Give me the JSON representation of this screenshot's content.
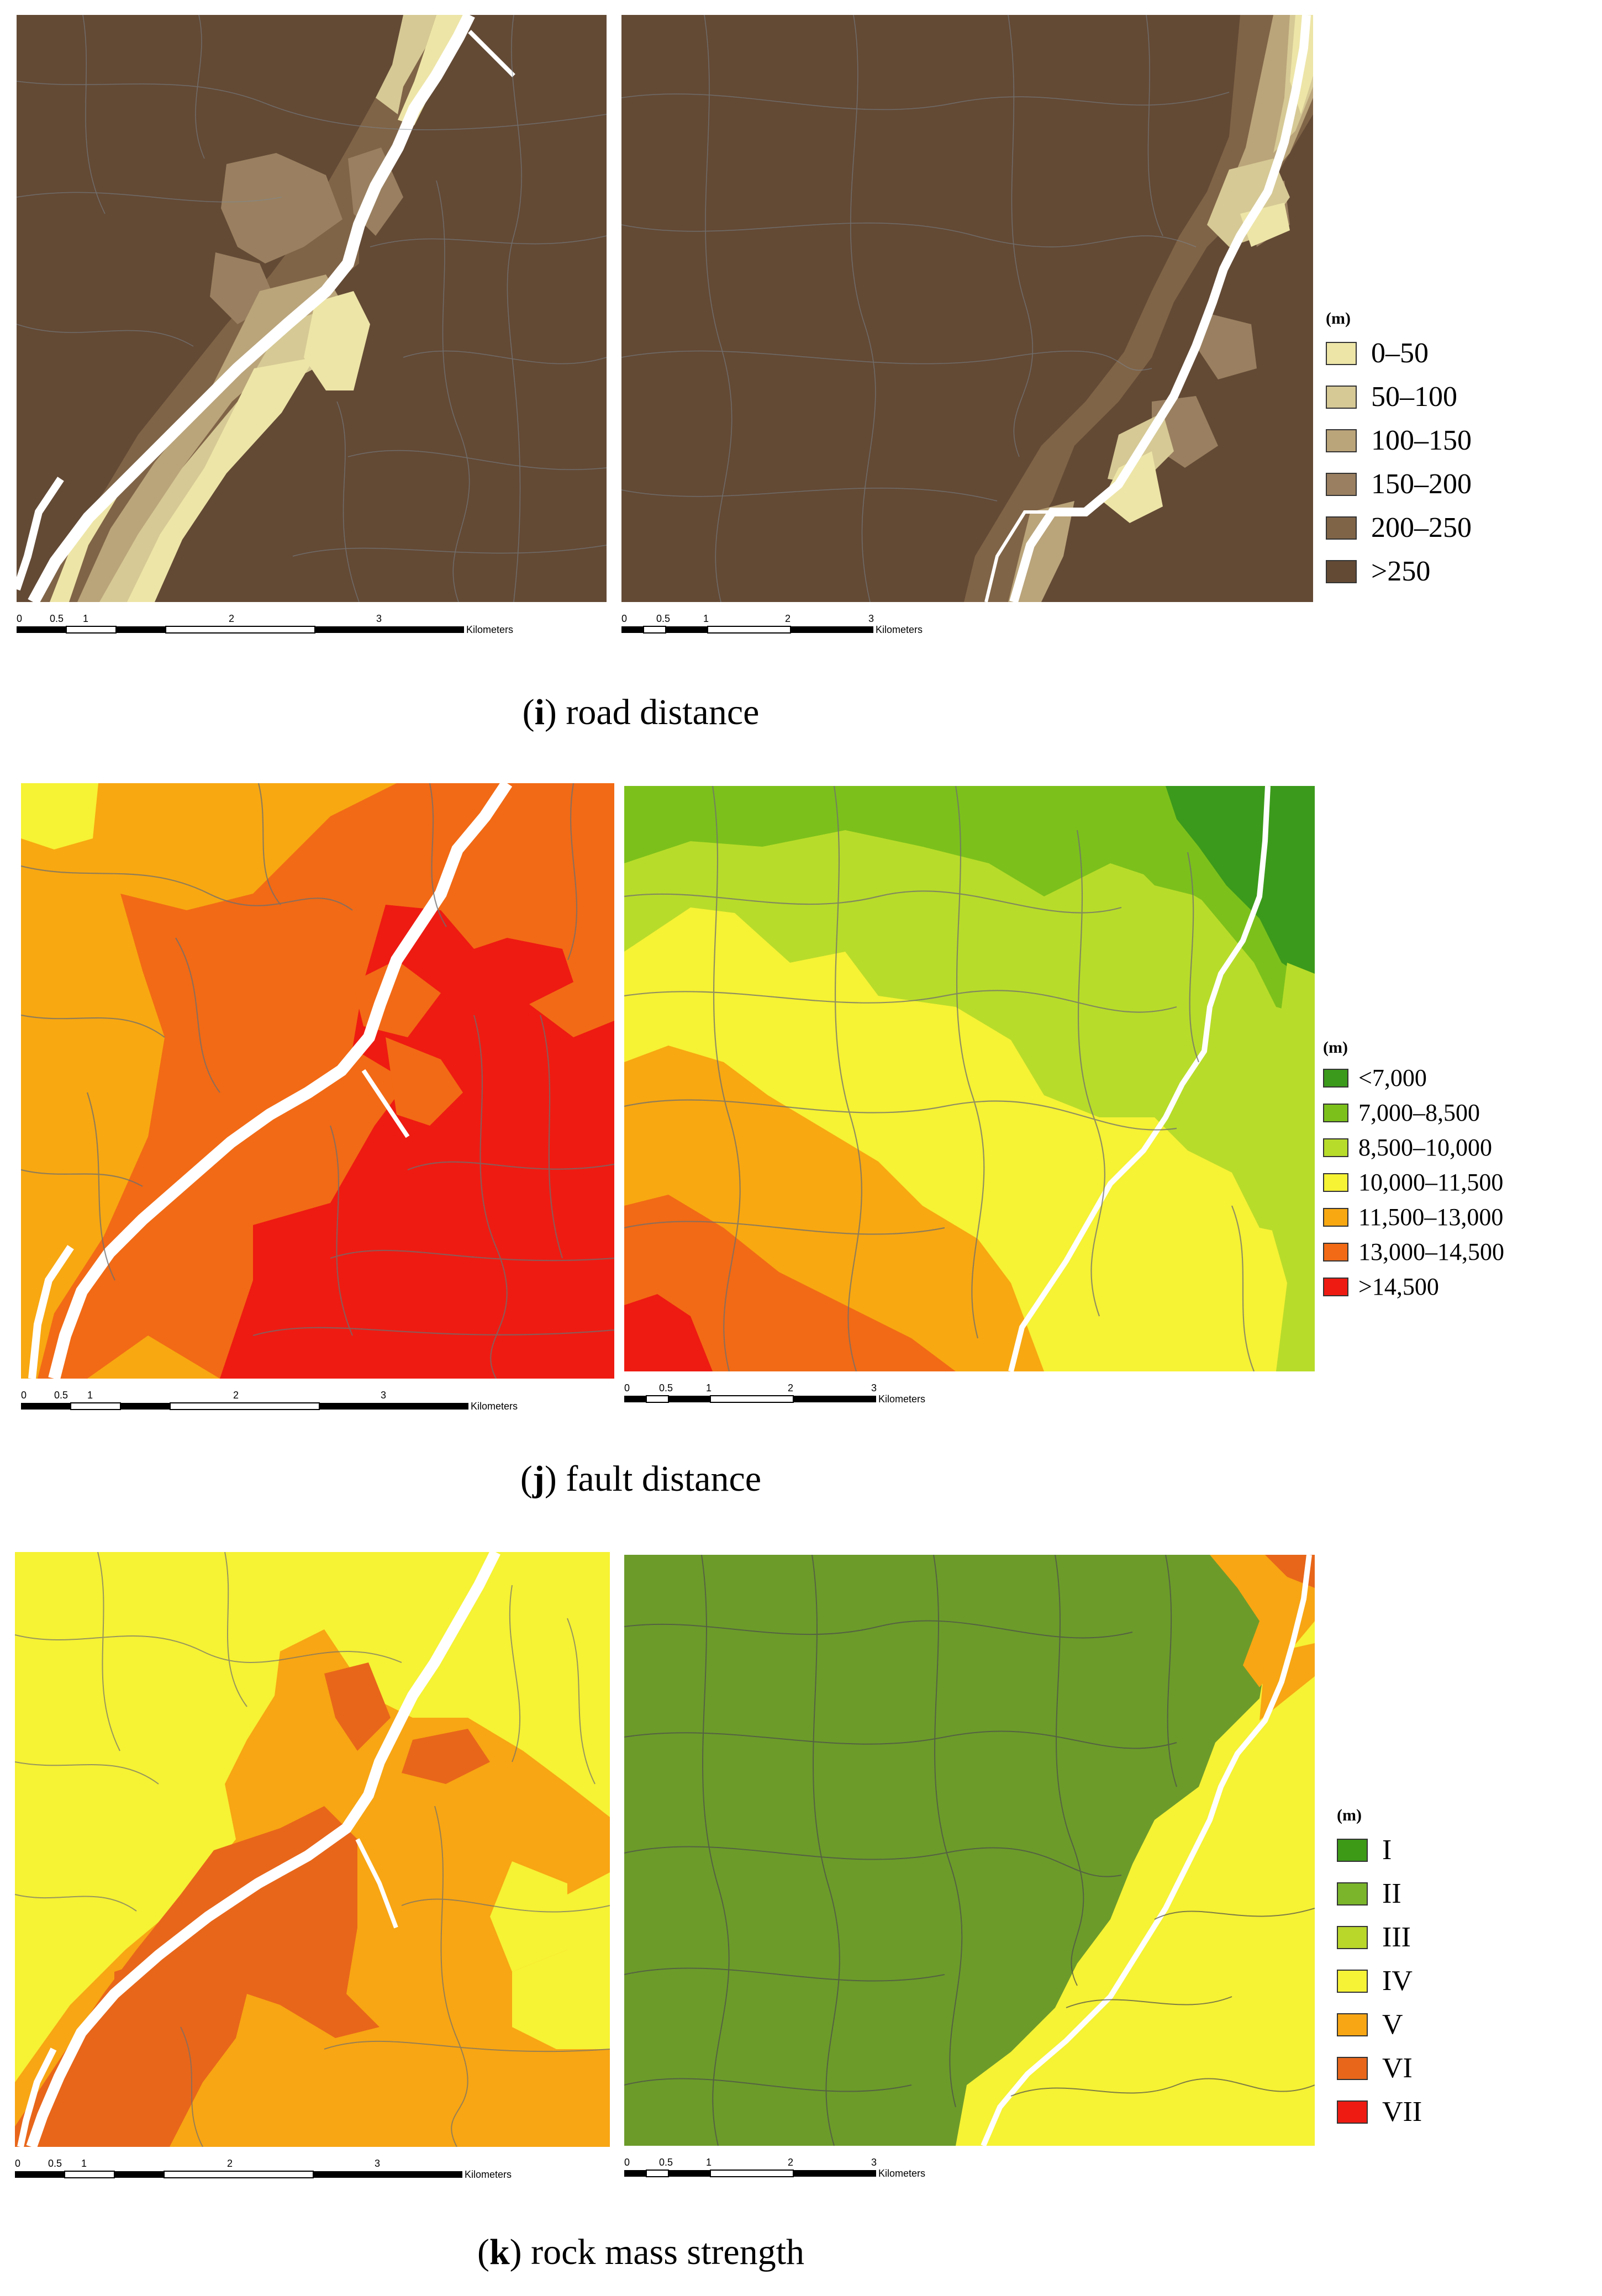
{
  "scale_bar": {
    "ticks": [
      "0",
      "0.5",
      "1",
      "2",
      "3"
    ],
    "unit": "Kilometers"
  },
  "panels": [
    {
      "letter": "i",
      "caption": "road distance",
      "legend": {
        "title": "(m)",
        "classes": [
          {
            "label": "0–50",
            "color": "#ede5a7"
          },
          {
            "label": "50–100",
            "color": "#d6c995"
          },
          {
            "label": "100–150",
            "color": "#baa47a"
          },
          {
            "label": "150–200",
            "color": "#9a8060"
          },
          {
            "label": "200–250",
            "color": "#806447"
          },
          {
            "label": ">250",
            "color": "#634a35"
          }
        ]
      }
    },
    {
      "letter": "j",
      "caption": "fault distance",
      "legend": {
        "title": "(m)",
        "classes": [
          {
            "label": "<7,000",
            "color": "#3b9a1b"
          },
          {
            "label": "7,000–8,500",
            "color": "#7cc11b"
          },
          {
            "label": "8,500–10,000",
            "color": "#b8dc2a"
          },
          {
            "label": "10,000–11,500",
            "color": "#f6f234"
          },
          {
            "label": "11,500–13,000",
            "color": "#f8a811"
          },
          {
            "label": "13,000–14,500",
            "color": "#f26a15"
          },
          {
            "label": ">14,500",
            "color": "#ee1b12"
          }
        ]
      }
    },
    {
      "letter": "k",
      "caption": "rock mass strength",
      "legend": {
        "title": "(m)",
        "classes": [
          {
            "label": "I",
            "color": "#3d9a17"
          },
          {
            "label": "II",
            "color": "#7ab52b"
          },
          {
            "label": "III",
            "color": "#b9d62a"
          },
          {
            "label": "IV",
            "color": "#f6f236"
          },
          {
            "label": "V",
            "color": "#f8a613"
          },
          {
            "label": "VI",
            "color": "#e8661a"
          },
          {
            "label": "VII",
            "color": "#ee1b12"
          }
        ]
      }
    }
  ]
}
